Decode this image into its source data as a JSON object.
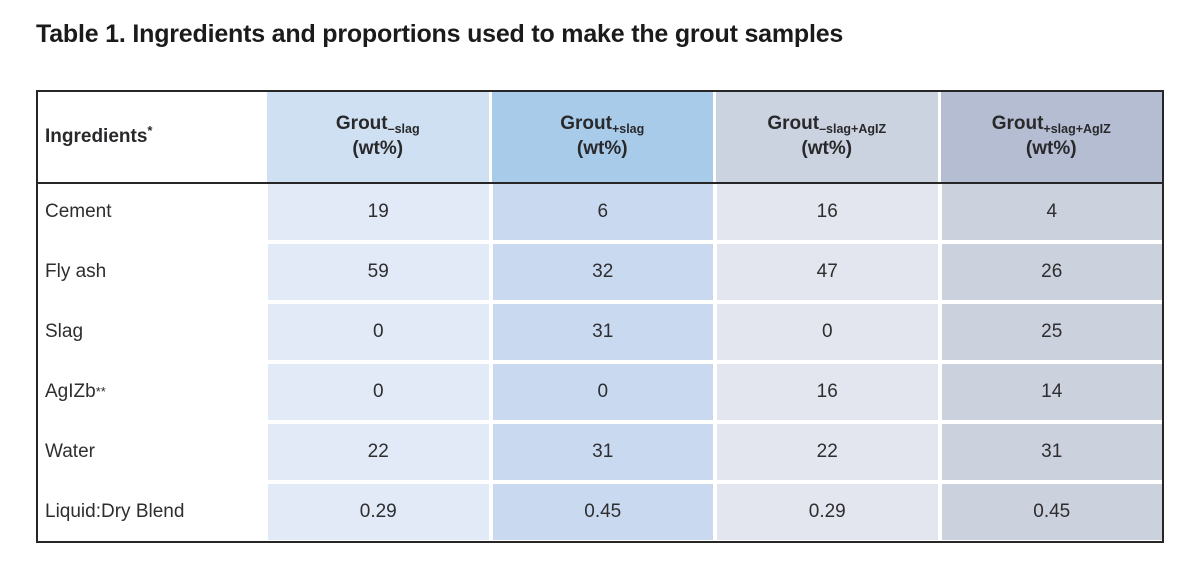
{
  "title": "Table 1. Ingredients and proportions used to make the grout samples",
  "table": {
    "header": {
      "ingredients_label": "Ingredients",
      "ingredients_sup": "*",
      "columns": [
        {
          "base": "Grout",
          "subscript": "–slag",
          "unit": "(wt%)"
        },
        {
          "base": "Grout",
          "subscript": "+slag",
          "unit": "(wt%)"
        },
        {
          "base": "Grout",
          "subscript": "–slag+AgIZ",
          "unit": "(wt%)"
        },
        {
          "base": "Grout",
          "subscript": "+slag+AgIZ",
          "unit": "(wt%)"
        }
      ]
    },
    "rows": [
      {
        "label": "Cement",
        "values": [
          "19",
          "6",
          "16",
          "4"
        ]
      },
      {
        "label": "Fly ash",
        "values": [
          "59",
          "32",
          "47",
          "26"
        ]
      },
      {
        "label": "Slag",
        "values": [
          "0",
          "31",
          "0",
          "25"
        ]
      },
      {
        "label": "AgIZb",
        "label_sup": "**",
        "values": [
          "0",
          "0",
          "16",
          "14"
        ]
      },
      {
        "label": "Water",
        "values": [
          "22",
          "31",
          "22",
          "31"
        ]
      },
      {
        "label": "Liquid:Dry Blend",
        "values": [
          "0.29",
          "0.45",
          "0.29",
          "0.45"
        ]
      }
    ]
  },
  "colors": {
    "header_bg": [
      "#ffffff",
      "#cfe0f2",
      "#a9cbea",
      "#cbd2e0",
      "#b4bdd2"
    ],
    "cell_bg": [
      "#ffffff",
      "#e1eaf6",
      "#c9daf0",
      "#e3e6ee",
      "#ccd1de"
    ],
    "border": "#262626"
  },
  "chart_data": {
    "type": "table",
    "title": "Table 1. Ingredients and proportions used to make the grout samples",
    "columns": [
      "Ingredients*",
      "Grout–slag (wt%)",
      "Grout+slag (wt%)",
      "Grout–slag+AgIZ (wt%)",
      "Grout+slag+AgIZ (wt%)"
    ],
    "rows": [
      [
        "Cement",
        19,
        6,
        16,
        4
      ],
      [
        "Fly ash",
        59,
        32,
        47,
        26
      ],
      [
        "Slag",
        0,
        31,
        0,
        25
      ],
      [
        "AgIZb**",
        0,
        0,
        16,
        14
      ],
      [
        "Water",
        22,
        31,
        22,
        31
      ],
      [
        "Liquid:Dry Blend",
        0.29,
        0.45,
        0.29,
        0.45
      ]
    ]
  }
}
